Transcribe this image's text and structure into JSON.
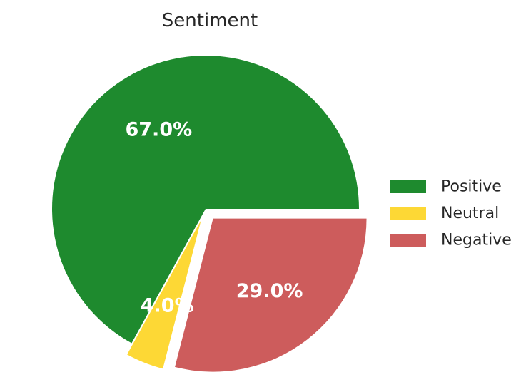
{
  "chart_data": {
    "type": "pie",
    "title": "Sentiment",
    "slices": [
      {
        "label": "Positive",
        "value": 67.0,
        "display": "67.0%",
        "color": "#1e8a2e",
        "exploded": false
      },
      {
        "label": "Neutral",
        "value": 4.0,
        "display": "4.0%",
        "color": "#fdd835",
        "exploded": true
      },
      {
        "label": "Negative",
        "value": 29.0,
        "display": "29.0%",
        "color": "#cd5c5c",
        "exploded": true
      }
    ],
    "start_angle_deg": 0,
    "direction": "counterclockwise",
    "legend": {
      "placement": "right",
      "entries": [
        "Positive",
        "Neutral",
        "Negative"
      ]
    }
  }
}
